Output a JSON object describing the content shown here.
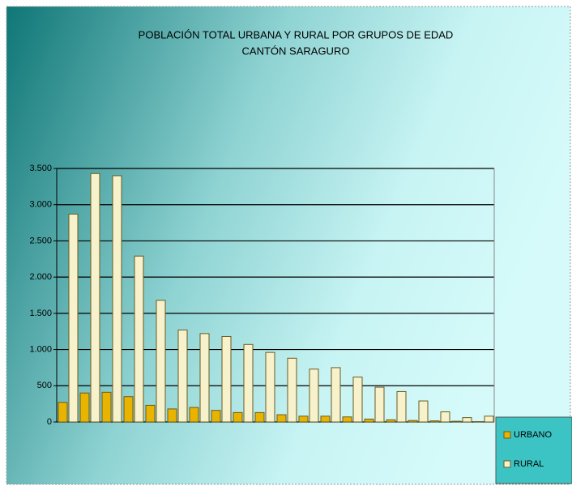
{
  "chart_data": {
    "type": "bar",
    "title": "POBLACIÓN TOTAL URBANA Y RURAL  POR GRUPOS DE EDAD",
    "subtitle": "CANTÓN SARAGURO",
    "categories": [
      null,
      null,
      null,
      null,
      null,
      null,
      null,
      null,
      null,
      null,
      null,
      null,
      null,
      null,
      null,
      null,
      null,
      null,
      null,
      null
    ],
    "series": [
      {
        "name": "URBANO",
        "color": "#e8b400",
        "values": [
          270,
          400,
          410,
          350,
          230,
          180,
          200,
          160,
          130,
          130,
          100,
          80,
          80,
          70,
          40,
          30,
          20,
          15,
          10,
          5
        ]
      },
      {
        "name": "RURAL",
        "color": "#f7f2cc",
        "values": [
          2870,
          3430,
          3400,
          2290,
          1680,
          1270,
          1220,
          1180,
          1070,
          960,
          880,
          730,
          750,
          620,
          480,
          420,
          290,
          140,
          60,
          80
        ]
      }
    ],
    "ylim": [
      0,
      3500
    ],
    "yticks": [
      0,
      500,
      {
        "value": 1000,
        "label": "1.000"
      },
      {
        "value": 1500,
        "label": "1.500"
      },
      {
        "value": 2000,
        "label": "2.000"
      },
      {
        "value": 2500,
        "label": "2.500"
      },
      {
        "value": 3000,
        "label": "3.000"
      },
      {
        "value": 3500,
        "label": "3.500"
      }
    ],
    "grid": true,
    "legend": "bottom-right"
  }
}
